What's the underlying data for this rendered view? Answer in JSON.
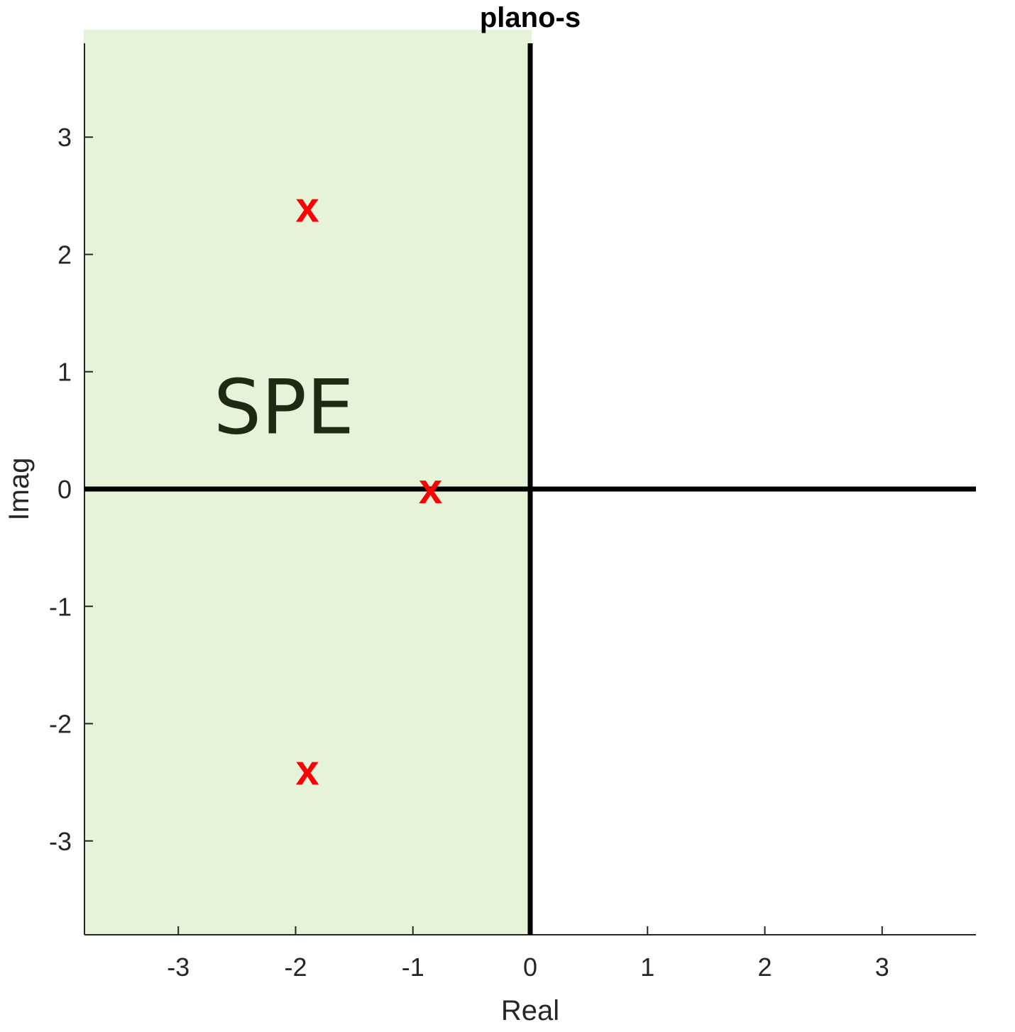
{
  "chart_data": {
    "type": "scatter",
    "title": "plano-s",
    "xlabel": "Real",
    "ylabel": "Imag",
    "xlim": [
      -3.8,
      3.8
    ],
    "ylim": [
      -3.8,
      3.8
    ],
    "xticks": [
      -3,
      -2,
      -1,
      0,
      1,
      2,
      3
    ],
    "yticks": [
      -3,
      -2,
      -1,
      0,
      1,
      2,
      3
    ],
    "xtick_labels": [
      "-3",
      "-2",
      "-1",
      "0",
      "1",
      "2",
      "3"
    ],
    "ytick_labels": [
      "-3",
      "-2",
      "-1",
      "0",
      "1",
      "2",
      "3"
    ],
    "grid": false,
    "shaded_region": {
      "label": "SPE",
      "x_range": [
        -3.8,
        0
      ],
      "color": "#e6f3d9"
    },
    "poles": {
      "marker": "x",
      "color": "#ff0000",
      "points": [
        {
          "x": -1.9,
          "y": 2.4,
          "symbol": "x"
        },
        {
          "x": -0.85,
          "y": 0.0,
          "symbol": "x"
        },
        {
          "x": -1.9,
          "y": -2.4,
          "symbol": "x"
        }
      ]
    },
    "region_label_position": {
      "x": -2.1,
      "y": 0.9
    },
    "colors": {
      "axes_lines": "#000000",
      "frame": "#262626",
      "poles": "#ff0000",
      "region": "#e6f3d9"
    }
  }
}
